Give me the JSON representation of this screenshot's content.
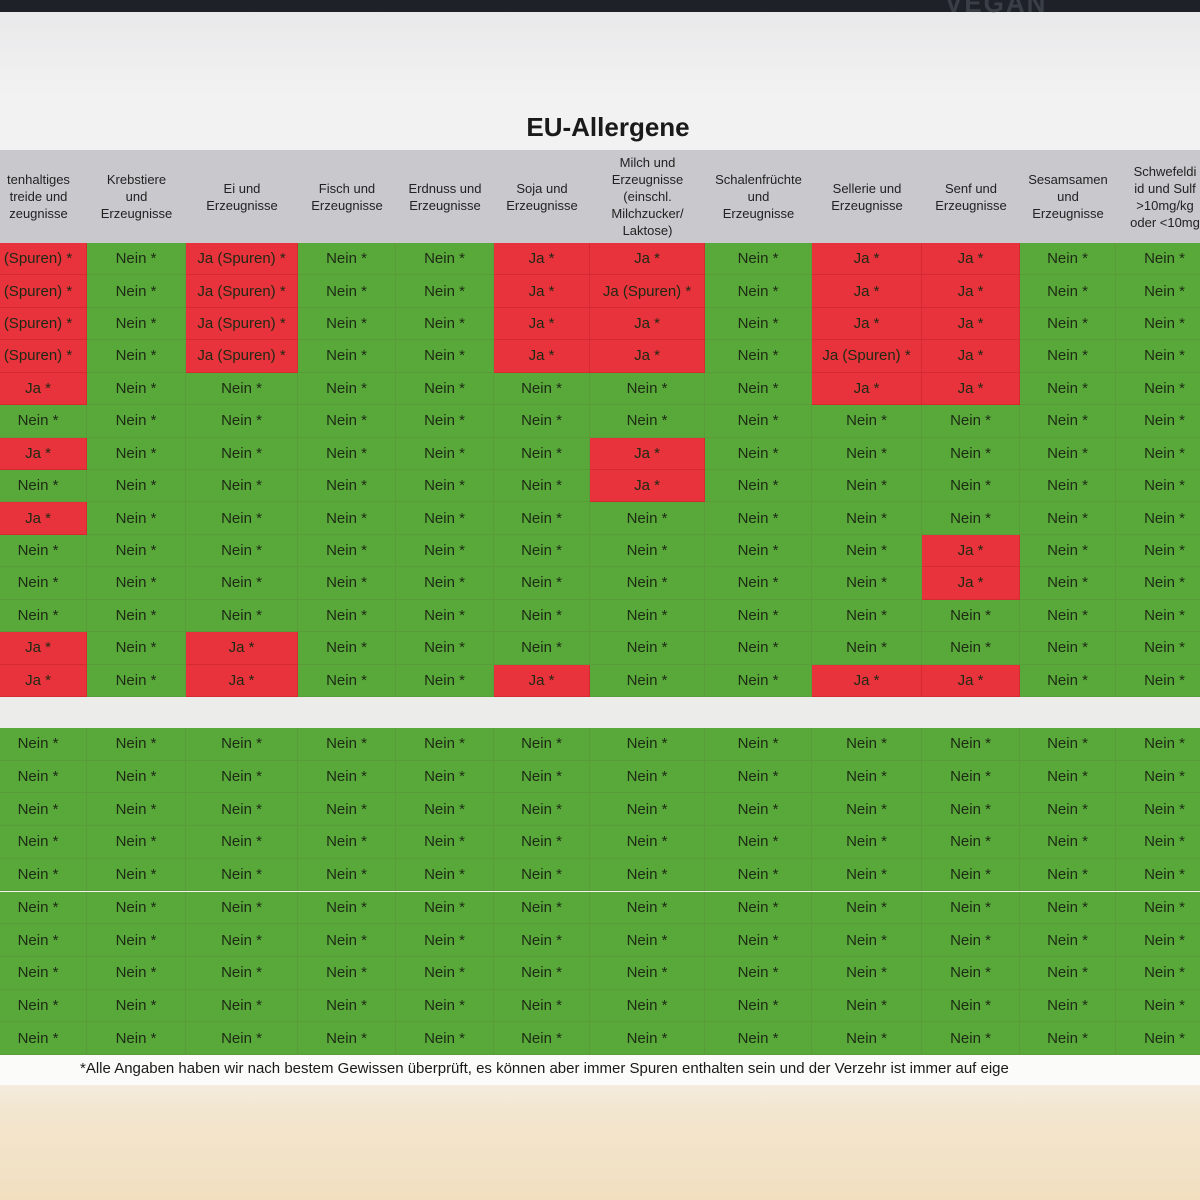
{
  "top_banner": "VEGAN",
  "title": "EU-Allergene",
  "table": {
    "headers": [
      "tenhaltiges\ntreide und\nzeugnisse",
      "Krebstiere\nund\nErzeugnisse",
      "Ei und\nErzeugnisse",
      "Fisch und\nErzeugnisse",
      "Erdnuss und\nErzeugnisse",
      "Soja und\nErzeugnisse",
      "Milch und\nErzeugnisse\n(einschl.\nMilchzucker/\nLaktose)",
      "Schalenfrüchte\nund\nErzeugnisse",
      "Sellerie und\nErzeugnisse",
      "Senf und\nErzeugnisse",
      "Sesamsamen\nund\nErzeugnisse",
      "Schwefeldi\nid und Sulf\n>10mg/kg\noder <10mg"
    ],
    "top_rows": [
      [
        "(Spuren) *",
        "Nein *",
        "Ja (Spuren) *",
        "Nein *",
        "Nein *",
        "Ja *",
        "Ja *",
        "Nein *",
        "Ja *",
        "Ja *",
        "Nein *",
        "Nein *"
      ],
      [
        "(Spuren) *",
        "Nein *",
        "Ja (Spuren) *",
        "Nein *",
        "Nein *",
        "Ja *",
        "Ja (Spuren) *",
        "Nein *",
        "Ja *",
        "Ja *",
        "Nein *",
        "Nein *"
      ],
      [
        "(Spuren) *",
        "Nein *",
        "Ja (Spuren) *",
        "Nein *",
        "Nein *",
        "Ja *",
        "Ja *",
        "Nein *",
        "Ja *",
        "Ja *",
        "Nein *",
        "Nein *"
      ],
      [
        "(Spuren) *",
        "Nein *",
        "Ja (Spuren) *",
        "Nein *",
        "Nein *",
        "Ja *",
        "Ja *",
        "Nein *",
        "Ja (Spuren) *",
        "Ja *",
        "Nein *",
        "Nein *"
      ],
      [
        "Ja *",
        "Nein *",
        "Nein *",
        "Nein *",
        "Nein *",
        "Nein *",
        "Nein *",
        "Nein *",
        "Ja *",
        "Ja *",
        "Nein *",
        "Nein *"
      ],
      [
        "Nein *",
        "Nein *",
        "Nein *",
        "Nein *",
        "Nein *",
        "Nein *",
        "Nein *",
        "Nein *",
        "Nein *",
        "Nein *",
        "Nein *",
        "Nein *"
      ],
      [
        "Ja *",
        "Nein *",
        "Nein *",
        "Nein *",
        "Nein *",
        "Nein *",
        "Ja *",
        "Nein *",
        "Nein *",
        "Nein *",
        "Nein *",
        "Nein *"
      ],
      [
        "Nein *",
        "Nein *",
        "Nein *",
        "Nein *",
        "Nein *",
        "Nein *",
        "Ja *",
        "Nein *",
        "Nein *",
        "Nein *",
        "Nein *",
        "Nein *"
      ],
      [
        "Ja *",
        "Nein *",
        "Nein *",
        "Nein *",
        "Nein *",
        "Nein *",
        "Nein *",
        "Nein *",
        "Nein *",
        "Nein *",
        "Nein *",
        "Nein *"
      ],
      [
        "Nein *",
        "Nein *",
        "Nein *",
        "Nein *",
        "Nein *",
        "Nein *",
        "Nein *",
        "Nein *",
        "Nein *",
        "Ja *",
        "Nein *",
        "Nein *"
      ],
      [
        "Nein *",
        "Nein *",
        "Nein *",
        "Nein *",
        "Nein *",
        "Nein *",
        "Nein *",
        "Nein *",
        "Nein *",
        "Ja *",
        "Nein *",
        "Nein *"
      ],
      [
        "Nein *",
        "Nein *",
        "Nein *",
        "Nein *",
        "Nein *",
        "Nein *",
        "Nein *",
        "Nein *",
        "Nein *",
        "Nein *",
        "Nein *",
        "Nein *"
      ],
      [
        "Ja *",
        "Nein *",
        "Ja *",
        "Nein *",
        "Nein *",
        "Nein *",
        "Nein *",
        "Nein *",
        "Nein *",
        "Nein *",
        "Nein *",
        "Nein *"
      ],
      [
        "Ja *",
        "Nein *",
        "Ja *",
        "Nein *",
        "Nein *",
        "Ja *",
        "Nein *",
        "Nein *",
        "Ja *",
        "Ja *",
        "Nein *",
        "Nein *"
      ]
    ],
    "bottom_rows": [
      [
        "Nein *",
        "Nein *",
        "Nein *",
        "Nein *",
        "Nein *",
        "Nein *",
        "Nein *",
        "Nein *",
        "Nein *",
        "Nein *",
        "Nein *",
        "Nein *"
      ],
      [
        "Nein *",
        "Nein *",
        "Nein *",
        "Nein *",
        "Nein *",
        "Nein *",
        "Nein *",
        "Nein *",
        "Nein *",
        "Nein *",
        "Nein *",
        "Nein *"
      ],
      [
        "Nein *",
        "Nein *",
        "Nein *",
        "Nein *",
        "Nein *",
        "Nein *",
        "Nein *",
        "Nein *",
        "Nein *",
        "Nein *",
        "Nein *",
        "Nein *"
      ],
      [
        "Nein *",
        "Nein *",
        "Nein *",
        "Nein *",
        "Nein *",
        "Nein *",
        "Nein *",
        "Nein *",
        "Nein *",
        "Nein *",
        "Nein *",
        "Nein *"
      ],
      [
        "Nein *",
        "Nein *",
        "Nein *",
        "Nein *",
        "Nein *",
        "Nein *",
        "Nein *",
        "Nein *",
        "Nein *",
        "Nein *",
        "Nein *",
        "Nein *"
      ],
      [
        "Nein *",
        "Nein *",
        "Nein *",
        "Nein *",
        "Nein *",
        "Nein *",
        "Nein *",
        "Nein *",
        "Nein *",
        "Nein *",
        "Nein *",
        "Nein *"
      ],
      [
        "Nein *",
        "Nein *",
        "Nein *",
        "Nein *",
        "Nein *",
        "Nein *",
        "Nein *",
        "Nein *",
        "Nein *",
        "Nein *",
        "Nein *",
        "Nein *"
      ],
      [
        "Nein *",
        "Nein *",
        "Nein *",
        "Nein *",
        "Nein *",
        "Nein *",
        "Nein *",
        "Nein *",
        "Nein *",
        "Nein *",
        "Nein *",
        "Nein *"
      ],
      [
        "Nein *",
        "Nein *",
        "Nein *",
        "Nein *",
        "Nein *",
        "Nein *",
        "Nein *",
        "Nein *",
        "Nein *",
        "Nein *",
        "Nein *",
        "Nein *"
      ],
      [
        "Nein *",
        "Nein *",
        "Nein *",
        "Nein *",
        "Nein *",
        "Nein *",
        "Nein *",
        "Nein *",
        "Nein *",
        "Nein *",
        "Nein *",
        "Nein *"
      ]
    ]
  },
  "footnote": "*Alle Angaben haben wir nach bestem Gewissen überprüft, es können aber immer Spuren enthalten sein und der Verzehr ist immer auf eige"
}
